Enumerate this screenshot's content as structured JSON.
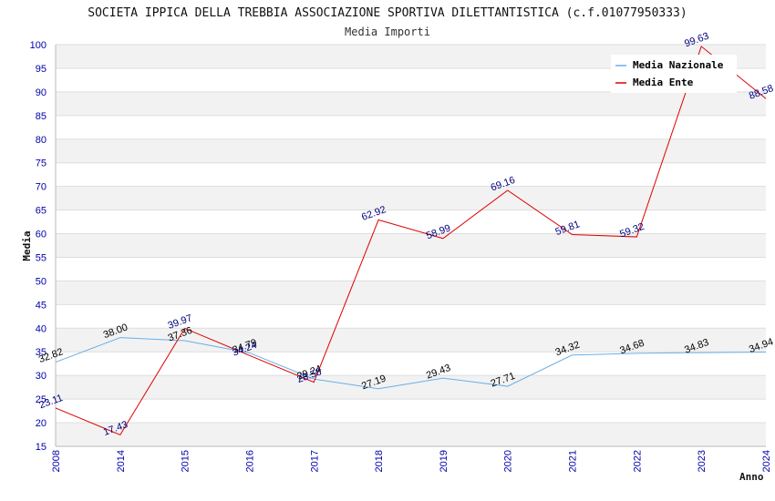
{
  "chart_data": {
    "type": "line",
    "title": "SOCIETA IPPICA DELLA TREBBIA ASSOCIAZIONE SPORTIVA DILETTANTISTICA (c.f.01077950333)",
    "subtitle": "Media Importi",
    "xlabel": "Anno",
    "ylabel": "Media",
    "ylim": [
      15,
      100
    ],
    "yticks": [
      "15",
      "20",
      "25",
      "30",
      "35",
      "40",
      "45",
      "50",
      "55",
      "60",
      "65",
      "70",
      "75",
      "80",
      "85",
      "90",
      "95",
      "100"
    ],
    "categories": [
      "2008",
      "2014",
      "2015",
      "2016",
      "2017",
      "2018",
      "2019",
      "2020",
      "2021",
      "2022",
      "2023",
      "2024"
    ],
    "series": [
      {
        "name": "Media Nazionale",
        "color": "#6aaee6",
        "values": [
          32.82,
          38.0,
          37.36,
          34.79,
          29.24,
          27.19,
          29.43,
          27.71,
          34.32,
          34.68,
          34.83,
          34.94
        ],
        "labels": [
          "32.82",
          "38.00",
          "37.36",
          "34.79",
          "29.24",
          "27.19",
          "29.43",
          "27.71",
          "34.32",
          "34.68",
          "34.83",
          "34.94"
        ]
      },
      {
        "name": "Media Ente",
        "color": "#dd0000",
        "values": [
          23.11,
          17.43,
          39.97,
          34.24,
          28.58,
          62.92,
          58.99,
          69.16,
          59.81,
          59.32,
          99.63,
          88.58
        ],
        "labels": [
          "23.11",
          "17.43",
          "39.97",
          "34.24",
          "28.58",
          "62.92",
          "58.99",
          "69.16",
          "59.81",
          "59.32",
          "99.63",
          "88.58"
        ]
      }
    ],
    "legend_position": "top-right",
    "grid": true
  }
}
